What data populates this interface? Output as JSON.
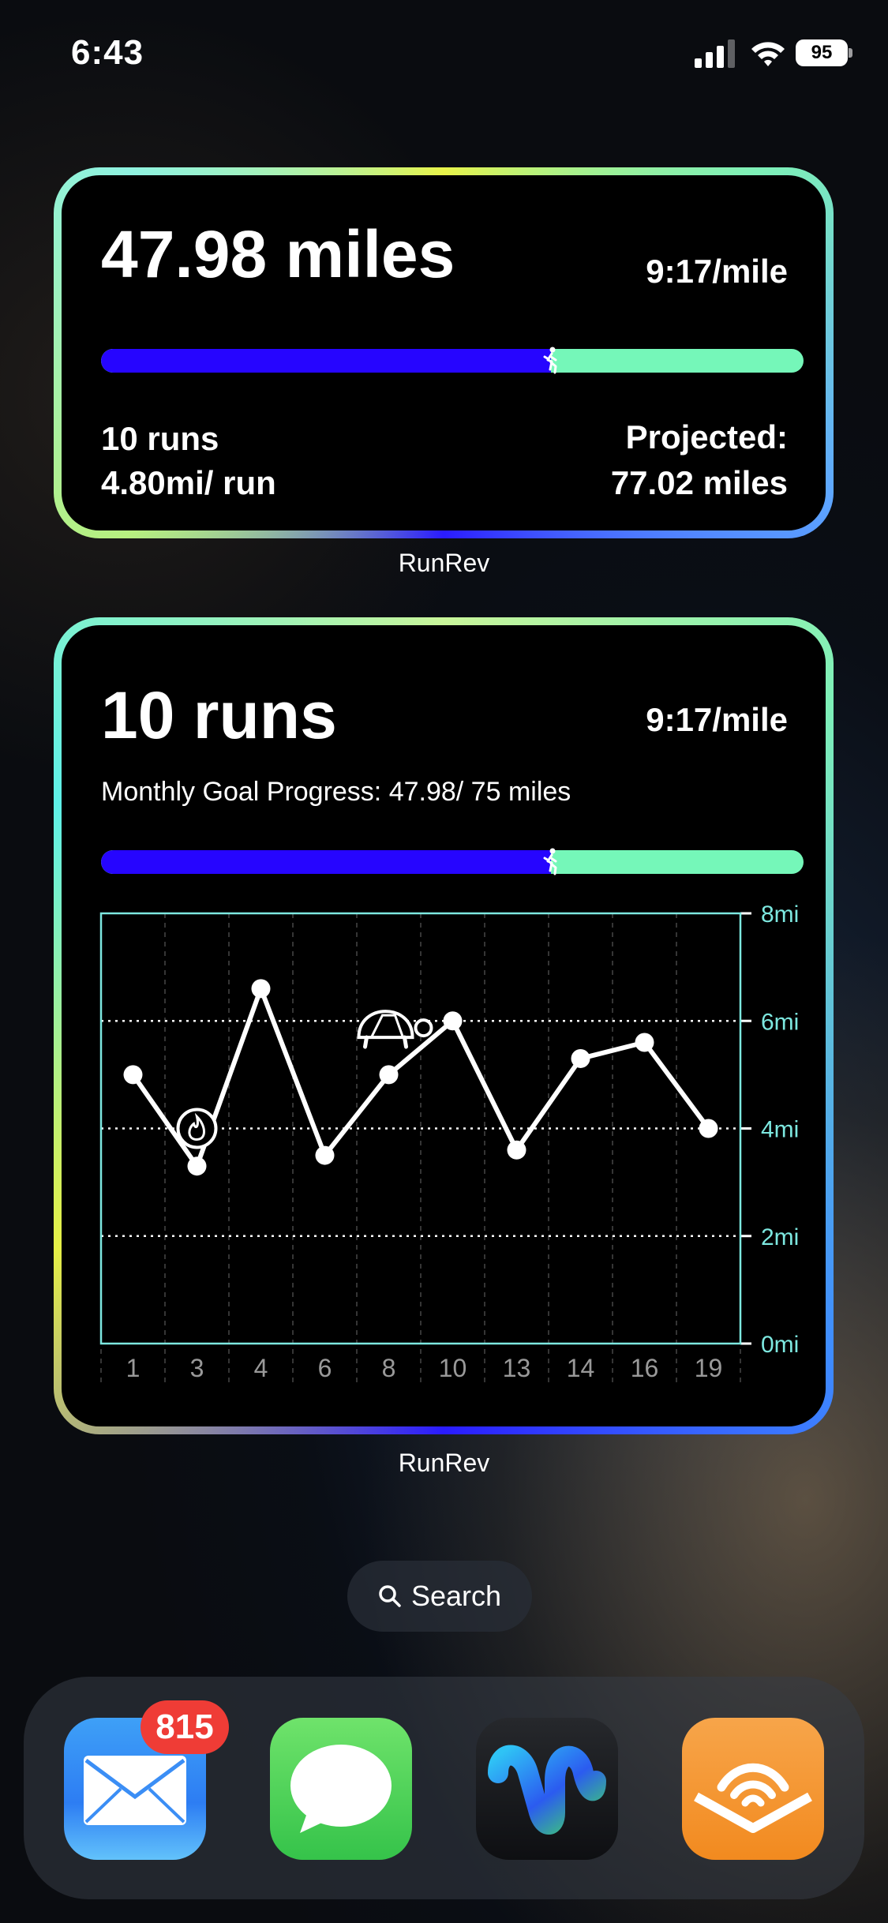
{
  "status_bar": {
    "time": "6:43",
    "battery": "95"
  },
  "widget_mileage": {
    "distance": "47.98 miles",
    "pace": "9:17/mile",
    "progress": 0.64,
    "runs": "10 runs",
    "per_run": "4.80mi/ run",
    "projected_label": "Projected:",
    "projected_value": "77.02 miles",
    "app_label": "RunRev"
  },
  "widget_chart": {
    "runs": "10 runs",
    "pace": "9:17/mile",
    "goal_text": "Monthly Goal Progress: 47.98/ 75 miles",
    "progress": 0.64,
    "app_label": "RunRev"
  },
  "chart_data": {
    "type": "line",
    "categories": [
      "1",
      "3",
      "4",
      "6",
      "8",
      "10",
      "13",
      "14",
      "16",
      "19"
    ],
    "values": [
      5.0,
      3.3,
      6.6,
      3.5,
      5.0,
      6.0,
      3.6,
      5.3,
      5.6,
      4.0
    ],
    "ylim": [
      0,
      8
    ],
    "yticks": [
      0,
      2,
      4,
      6,
      8
    ],
    "ytick_labels": [
      "0mi",
      "2mi",
      "4mi",
      "6mi",
      "8mi"
    ],
    "grid": true,
    "annotations": [
      {
        "category": "3",
        "icon": "flame-icon",
        "y": 4.0
      },
      {
        "category": "8",
        "icon": "turtle-icon",
        "y": 5.9
      }
    ],
    "colors": {
      "line": "#ffffff",
      "axis": "#7de8e0",
      "progress_fill": "#2605ff",
      "progress_track": "#75f7b9"
    }
  },
  "search": {
    "label": "Search"
  },
  "dock": {
    "apps": [
      {
        "name": "Mail",
        "badge": "815"
      },
      {
        "name": "Messages"
      },
      {
        "name": "Webex"
      },
      {
        "name": "Audible"
      }
    ]
  }
}
